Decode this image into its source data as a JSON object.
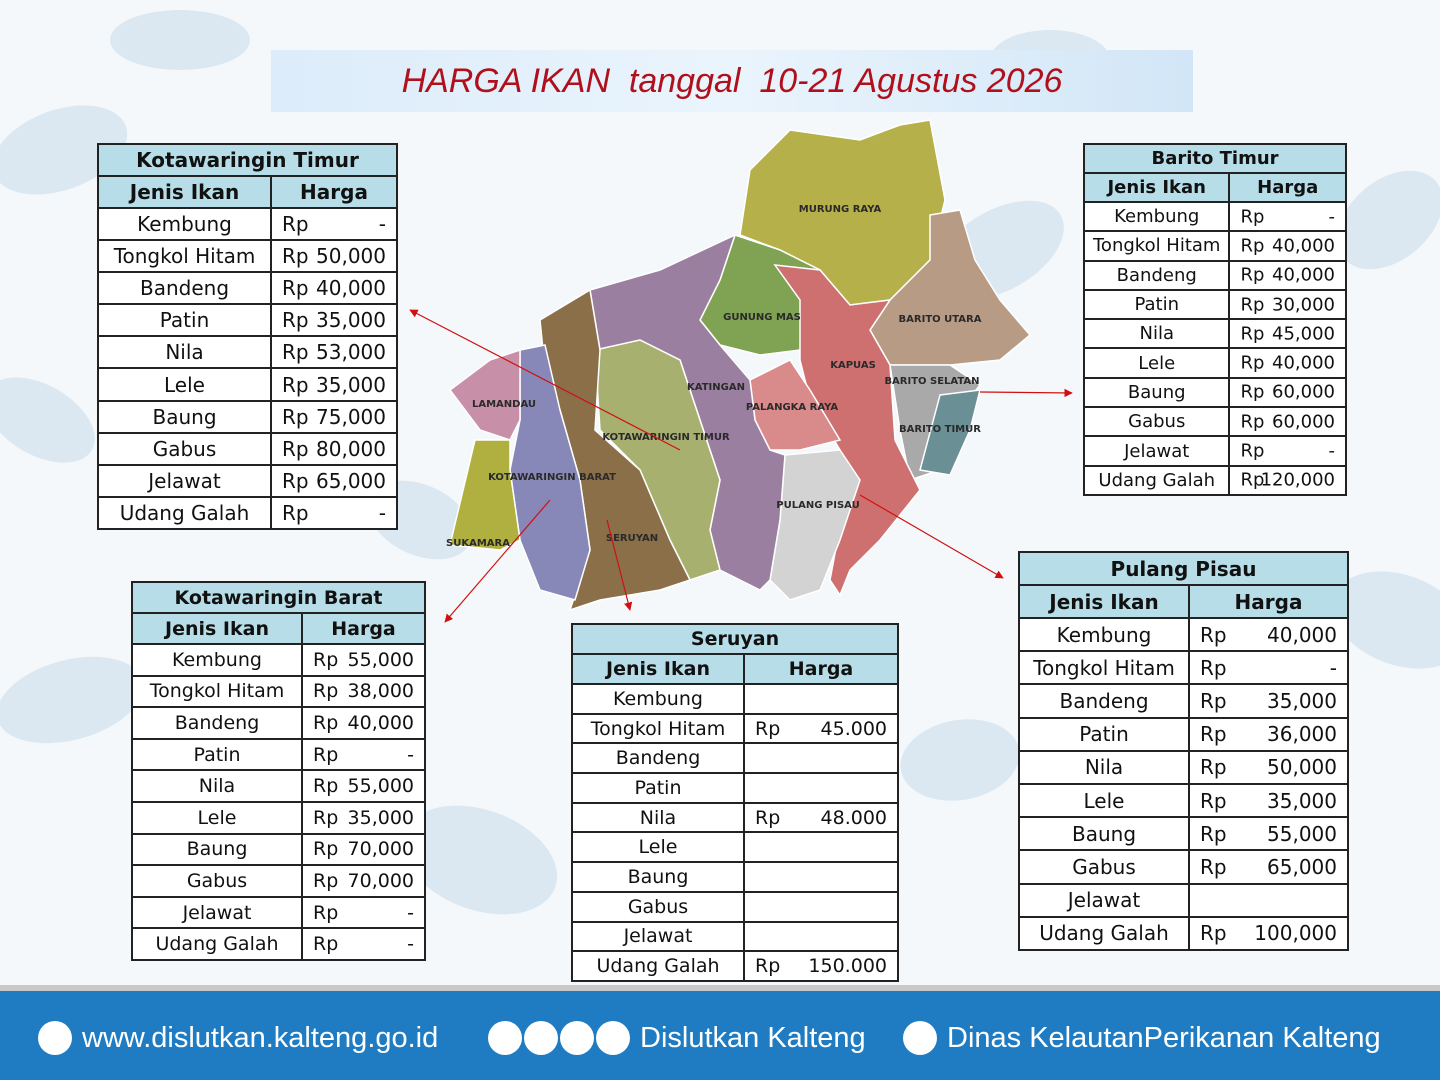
{
  "header": {
    "title": "HARGA IKAN  tanggal  10-21 Agustus 2026"
  },
  "map": {
    "regions": [
      "MURUNG RAYA",
      "GUNUNG MAS",
      "BARITO UTARA",
      "KAPUAS",
      "KATINGAN",
      "PALANGKA RAYA",
      "BARITO SELATAN",
      "BARITO TIMUR",
      "LAMANDAU",
      "KOTAWARINGIN TIMUR",
      "KOTAWARINGIN BARAT",
      "PULANG PISAU",
      "SUKAMARA",
      "SERUYAN"
    ]
  },
  "tables": [
    {
      "title": "Kotawaringin Timur",
      "columns": [
        "Jenis Ikan",
        "Harga"
      ],
      "rows": [
        {
          "fish": "Kembung",
          "currency": "Rp",
          "price": "-"
        },
        {
          "fish": "Tongkol Hitam",
          "currency": "Rp",
          "price": "50,000"
        },
        {
          "fish": "Bandeng",
          "currency": "Rp",
          "price": "40,000"
        },
        {
          "fish": "Patin",
          "currency": "Rp",
          "price": "35,000"
        },
        {
          "fish": "Nila",
          "currency": "Rp",
          "price": "53,000"
        },
        {
          "fish": "Lele",
          "currency": "Rp",
          "price": "35,000"
        },
        {
          "fish": "Baung",
          "currency": "Rp",
          "price": "75,000"
        },
        {
          "fish": "Gabus",
          "currency": "Rp",
          "price": "80,000"
        },
        {
          "fish": "Jelawat",
          "currency": "Rp",
          "price": "65,000"
        },
        {
          "fish": "Udang Galah",
          "currency": "Rp",
          "price": "-"
        }
      ]
    },
    {
      "title": "Barito Timur",
      "columns": [
        "Jenis Ikan",
        "Harga"
      ],
      "rows": [
        {
          "fish": "Kembung",
          "currency": "Rp",
          "price": "-"
        },
        {
          "fish": "Tongkol Hitam",
          "currency": "Rp",
          "price": "40,000"
        },
        {
          "fish": "Bandeng",
          "currency": "Rp",
          "price": "40,000"
        },
        {
          "fish": "Patin",
          "currency": "Rp",
          "price": "30,000"
        },
        {
          "fish": "Nila",
          "currency": "Rp",
          "price": "45,000"
        },
        {
          "fish": "Lele",
          "currency": "Rp",
          "price": "40,000"
        },
        {
          "fish": "Baung",
          "currency": "Rp",
          "price": "60,000"
        },
        {
          "fish": "Gabus",
          "currency": "Rp",
          "price": "60,000"
        },
        {
          "fish": "Jelawat",
          "currency": "Rp",
          "price": "-"
        },
        {
          "fish": "Udang Galah",
          "currency": "Rp",
          "price": "120,000"
        }
      ]
    },
    {
      "title": "Kotawaringin Barat",
      "columns": [
        "Jenis Ikan",
        "Harga"
      ],
      "rows": [
        {
          "fish": "Kembung",
          "currency": "Rp",
          "price": "55,000"
        },
        {
          "fish": "Tongkol Hitam",
          "currency": "Rp",
          "price": "38,000"
        },
        {
          "fish": "Bandeng",
          "currency": "Rp",
          "price": "40,000"
        },
        {
          "fish": "Patin",
          "currency": "Rp",
          "price": "-"
        },
        {
          "fish": "Nila",
          "currency": "Rp",
          "price": "55,000"
        },
        {
          "fish": "Lele",
          "currency": "Rp",
          "price": "35,000"
        },
        {
          "fish": "Baung",
          "currency": "Rp",
          "price": "70,000"
        },
        {
          "fish": "Gabus",
          "currency": "Rp",
          "price": "70,000"
        },
        {
          "fish": "Jelawat",
          "currency": "Rp",
          "price": "-"
        },
        {
          "fish": "Udang Galah",
          "currency": "Rp",
          "price": "-"
        }
      ]
    },
    {
      "title": "Seruyan",
      "columns": [
        "Jenis Ikan",
        "Harga"
      ],
      "rows": [
        {
          "fish": "Kembung"
        },
        {
          "fish": "Tongkol Hitam",
          "currency": "Rp",
          "price": "45.000"
        },
        {
          "fish": "Bandeng"
        },
        {
          "fish": "Patin"
        },
        {
          "fish": "Nila",
          "currency": "Rp",
          "price": "48.000"
        },
        {
          "fish": "Lele"
        },
        {
          "fish": "Baung"
        },
        {
          "fish": "Gabus"
        },
        {
          "fish": "Jelawat"
        },
        {
          "fish": "Udang Galah",
          "currency": "Rp",
          "price": "150.000"
        }
      ]
    },
    {
      "title": "Pulang Pisau",
      "columns": [
        "Jenis Ikan",
        "Harga"
      ],
      "rows": [
        {
          "fish": "Kembung",
          "currency": "Rp",
          "price": "40,000"
        },
        {
          "fish": "Tongkol Hitam",
          "currency": "Rp",
          "price": "-"
        },
        {
          "fish": "Bandeng",
          "currency": "Rp",
          "price": "35,000"
        },
        {
          "fish": "Patin",
          "currency": "Rp",
          "price": "36,000"
        },
        {
          "fish": "Nila",
          "currency": "Rp",
          "price": "50,000"
        },
        {
          "fish": "Lele",
          "currency": "Rp",
          "price": "35,000"
        },
        {
          "fish": "Baung",
          "currency": "Rp",
          "price": "55,000"
        },
        {
          "fish": "Gabus",
          "currency": "Rp",
          "price": "65,000"
        },
        {
          "fish": "Jelawat"
        },
        {
          "fish": "Udang Galah",
          "currency": "Rp",
          "price": "100,000"
        }
      ]
    }
  ],
  "footer": {
    "website": "www.dislutkan.kalteng.go.id",
    "social": "Dislutkan Kalteng",
    "facebook": "Dinas KelautanPerikanan Kalteng"
  }
}
